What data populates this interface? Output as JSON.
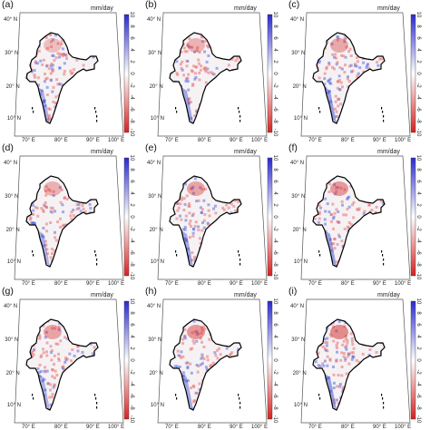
{
  "figure": {
    "panels": [
      {
        "label": "(a)"
      },
      {
        "label": "(b)"
      },
      {
        "label": "(c)"
      },
      {
        "label": "(d)"
      },
      {
        "label": "(e)"
      },
      {
        "label": "(f)"
      },
      {
        "label": "(g)"
      },
      {
        "label": "(h)"
      },
      {
        "label": "(i)"
      }
    ],
    "colorbar": {
      "unit": "mm/day",
      "ticks": [
        "10",
        "8",
        "6",
        "4",
        "2",
        "0",
        "-2",
        "-4",
        "-6",
        "-8",
        "-10"
      ],
      "range": [
        -10,
        10
      ],
      "colors": {
        "positive": "#2a2ad0",
        "zero": "#ffffff",
        "negative": "#d82020"
      }
    },
    "map_ticks": {
      "lat": [
        "40° N",
        "30° N",
        "20° N",
        "10° N"
      ],
      "lon": [
        "70° E",
        "80° E",
        "90° E",
        "100° E"
      ]
    }
  }
}
